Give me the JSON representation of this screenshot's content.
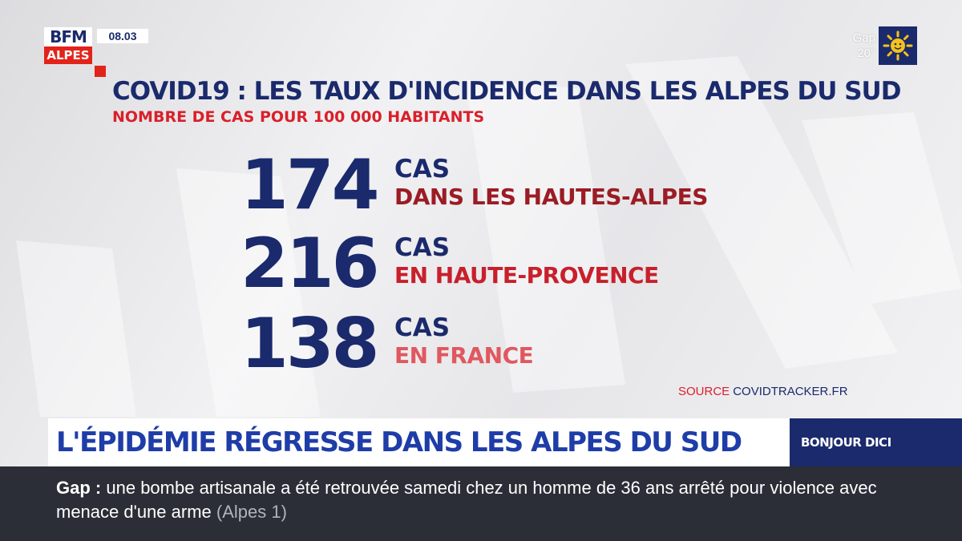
{
  "channel": {
    "logo_top": "BFM",
    "logo_bottom": "ALPES",
    "time": "08.03",
    "brand_red": "#e2231a",
    "brand_navy": "#1a2a6c"
  },
  "weather": {
    "city": "Gap",
    "temperature": "20°",
    "icon": "sun-icon"
  },
  "title": "COVID19 : LES TAUX D'INCIDENCE DANS LES ALPES DU SUD",
  "subtitle": "NOMBRE DE CAS POUR 100 000 HABITANTS",
  "stats": [
    {
      "value": "174",
      "unit": "CAS",
      "place": "DANS LES HAUTES-ALPES",
      "place_color": "#9b1c24"
    },
    {
      "value": "216",
      "unit": "CAS",
      "place": "EN HAUTE-PROVENCE",
      "place_color": "#c8202b"
    },
    {
      "value": "138",
      "unit": "CAS",
      "place": "EN FRANCE",
      "place_color": "#e0585f"
    }
  ],
  "source": {
    "label": "SOURCE",
    "value": "COVIDTRACKER.FR"
  },
  "headline": "L'ÉPIDÉMIE RÉGRESSE DANS LES ALPES DU SUD",
  "show_name": "BONJOUR DICI",
  "ticker": {
    "place": "Gap",
    "separator": ":",
    "text": "une bombe artisanale a été retrouvée samedi chez un homme de 36 ans arrêté pour violence avec menace d'une arme",
    "source": "(Alpes 1)"
  }
}
